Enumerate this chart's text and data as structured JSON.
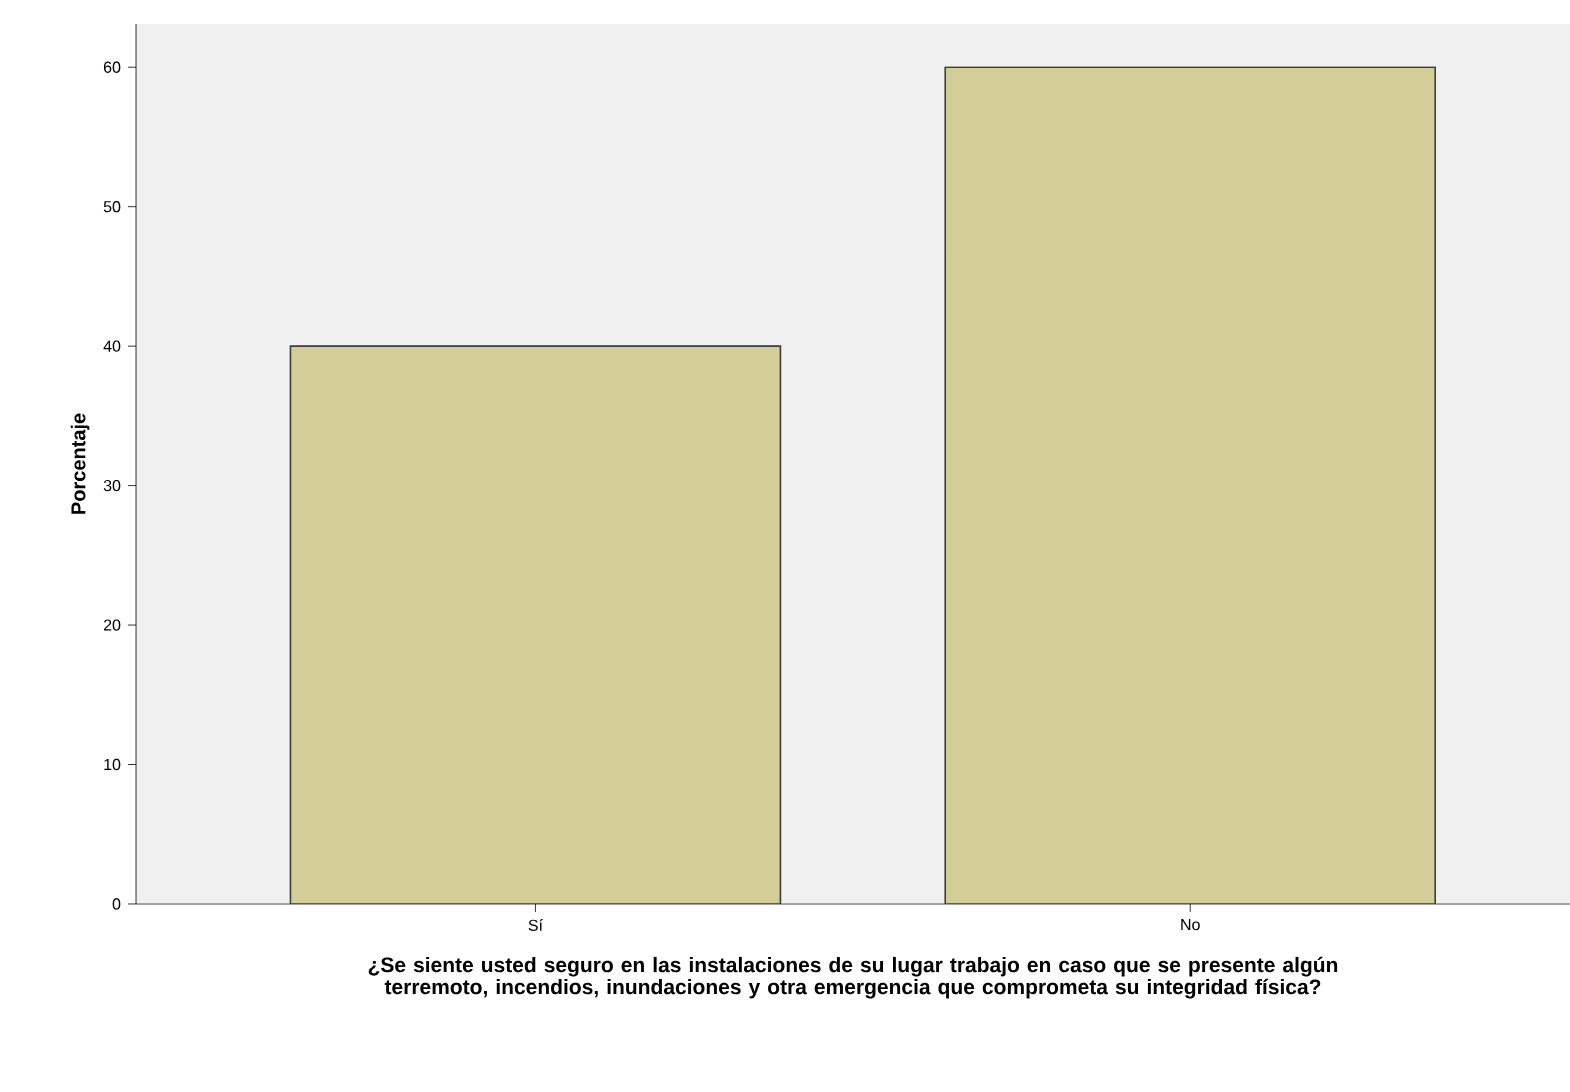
{
  "chart_data": {
    "type": "bar",
    "xlabel": "¿Se siente usted seguro en las instalaciones de su lugar trabajo en caso que se presente algún terremoto, incendios, inundaciones y otra emergencia que comprometa su integridad física?",
    "ylabel": "Porcentaje",
    "categories": [
      "Sí",
      "No"
    ],
    "values": [
      40,
      60
    ],
    "color": "#d3ce97",
    "ylim": [
      0,
      63.1
    ],
    "yticks": [
      0,
      10,
      20,
      30,
      40,
      50,
      60
    ],
    "grid": false
  }
}
